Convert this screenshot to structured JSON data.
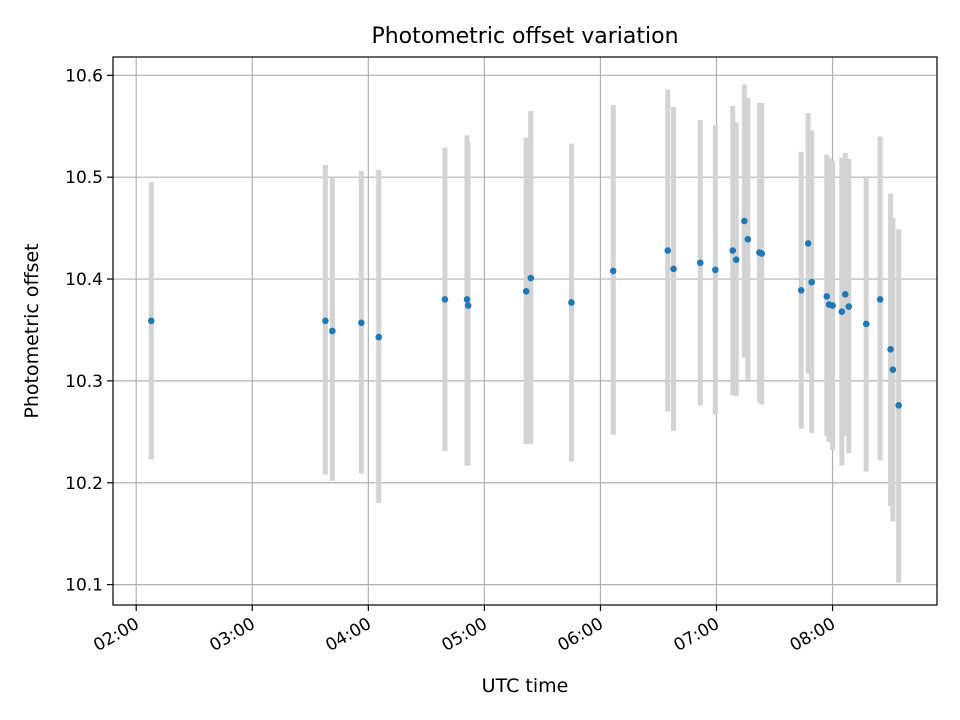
{
  "chart_data": {
    "type": "scatter",
    "title": "Photometric offset variation",
    "xlabel": "UTC time",
    "ylabel": "Photometric offset",
    "grid": true,
    "legend": "none",
    "xlim": [
      1.8,
      8.9
    ],
    "ylim": [
      10.08,
      10.618
    ],
    "x_ticks": [
      {
        "value": 2,
        "label": "02:00"
      },
      {
        "value": 3,
        "label": "03:00"
      },
      {
        "value": 4,
        "label": "04:00"
      },
      {
        "value": 5,
        "label": "05:00"
      },
      {
        "value": 6,
        "label": "06:00"
      },
      {
        "value": 7,
        "label": "07:00"
      },
      {
        "value": 8,
        "label": "08:00"
      }
    ],
    "y_ticks": [
      {
        "value": 10.1,
        "label": "10.1"
      },
      {
        "value": 10.2,
        "label": "10.2"
      },
      {
        "value": 10.3,
        "label": "10.3"
      },
      {
        "value": 10.4,
        "label": "10.4"
      },
      {
        "value": 10.5,
        "label": "10.5"
      },
      {
        "value": 10.6,
        "label": "10.6"
      }
    ],
    "colors": {
      "point": "#1f77b4",
      "errorbar": "#d3d3d3",
      "grid": "#b0b0b0",
      "axis": "#000000"
    },
    "x_unit": "hours UTC",
    "points": [
      {
        "x": 2.13,
        "y": 10.359,
        "ylo": 10.223,
        "yhi": 10.495
      },
      {
        "x": 3.63,
        "y": 10.359,
        "ylo": 10.208,
        "yhi": 10.512
      },
      {
        "x": 3.69,
        "y": 10.349,
        "ylo": 10.202,
        "yhi": 10.5
      },
      {
        "x": 3.94,
        "y": 10.357,
        "ylo": 10.209,
        "yhi": 10.506
      },
      {
        "x": 4.09,
        "y": 10.343,
        "ylo": 10.18,
        "yhi": 10.507
      },
      {
        "x": 4.66,
        "y": 10.38,
        "ylo": 10.231,
        "yhi": 10.529
      },
      {
        "x": 4.85,
        "y": 10.38,
        "ylo": 10.217,
        "yhi": 10.541
      },
      {
        "x": 4.86,
        "y": 10.374,
        "ylo": 10.217,
        "yhi": 10.534
      },
      {
        "x": 5.36,
        "y": 10.388,
        "ylo": 10.238,
        "yhi": 10.539
      },
      {
        "x": 5.4,
        "y": 10.401,
        "ylo": 10.238,
        "yhi": 10.565
      },
      {
        "x": 5.75,
        "y": 10.377,
        "ylo": 10.221,
        "yhi": 10.533
      },
      {
        "x": 6.11,
        "y": 10.408,
        "ylo": 10.247,
        "yhi": 10.571
      },
      {
        "x": 6.58,
        "y": 10.428,
        "ylo": 10.27,
        "yhi": 10.586
      },
      {
        "x": 6.63,
        "y": 10.41,
        "ylo": 10.251,
        "yhi": 10.569
      },
      {
        "x": 6.86,
        "y": 10.416,
        "ylo": 10.276,
        "yhi": 10.556
      },
      {
        "x": 6.99,
        "y": 10.409,
        "ylo": 10.267,
        "yhi": 10.551
      },
      {
        "x": 7.14,
        "y": 10.428,
        "ylo": 10.286,
        "yhi": 10.57
      },
      {
        "x": 7.17,
        "y": 10.419,
        "ylo": 10.285,
        "yhi": 10.554
      },
      {
        "x": 7.24,
        "y": 10.457,
        "ylo": 10.323,
        "yhi": 10.591
      },
      {
        "x": 7.27,
        "y": 10.439,
        "ylo": 10.301,
        "yhi": 10.578
      },
      {
        "x": 7.37,
        "y": 10.426,
        "ylo": 10.279,
        "yhi": 10.573
      },
      {
        "x": 7.39,
        "y": 10.425,
        "ylo": 10.277,
        "yhi": 10.573
      },
      {
        "x": 7.73,
        "y": 10.389,
        "ylo": 10.253,
        "yhi": 10.525
      },
      {
        "x": 7.79,
        "y": 10.435,
        "ylo": 10.307,
        "yhi": 10.563
      },
      {
        "x": 7.82,
        "y": 10.397,
        "ylo": 10.249,
        "yhi": 10.546
      },
      {
        "x": 7.95,
        "y": 10.383,
        "ylo": 10.246,
        "yhi": 10.522
      },
      {
        "x": 7.97,
        "y": 10.375,
        "ylo": 10.24,
        "yhi": 10.519
      },
      {
        "x": 8.0,
        "y": 10.374,
        "ylo": 10.232,
        "yhi": 10.516
      },
      {
        "x": 8.08,
        "y": 10.368,
        "ylo": 10.217,
        "yhi": 10.519
      },
      {
        "x": 8.11,
        "y": 10.385,
        "ylo": 10.246,
        "yhi": 10.524
      },
      {
        "x": 8.14,
        "y": 10.373,
        "ylo": 10.229,
        "yhi": 10.518
      },
      {
        "x": 8.29,
        "y": 10.356,
        "ylo": 10.211,
        "yhi": 10.501
      },
      {
        "x": 8.41,
        "y": 10.38,
        "ylo": 10.222,
        "yhi": 10.54
      },
      {
        "x": 8.5,
        "y": 10.331,
        "ylo": 10.177,
        "yhi": 10.484
      },
      {
        "x": 8.52,
        "y": 10.311,
        "ylo": 10.162,
        "yhi": 10.46
      },
      {
        "x": 8.57,
        "y": 10.276,
        "ylo": 10.102,
        "yhi": 10.449
      }
    ]
  }
}
